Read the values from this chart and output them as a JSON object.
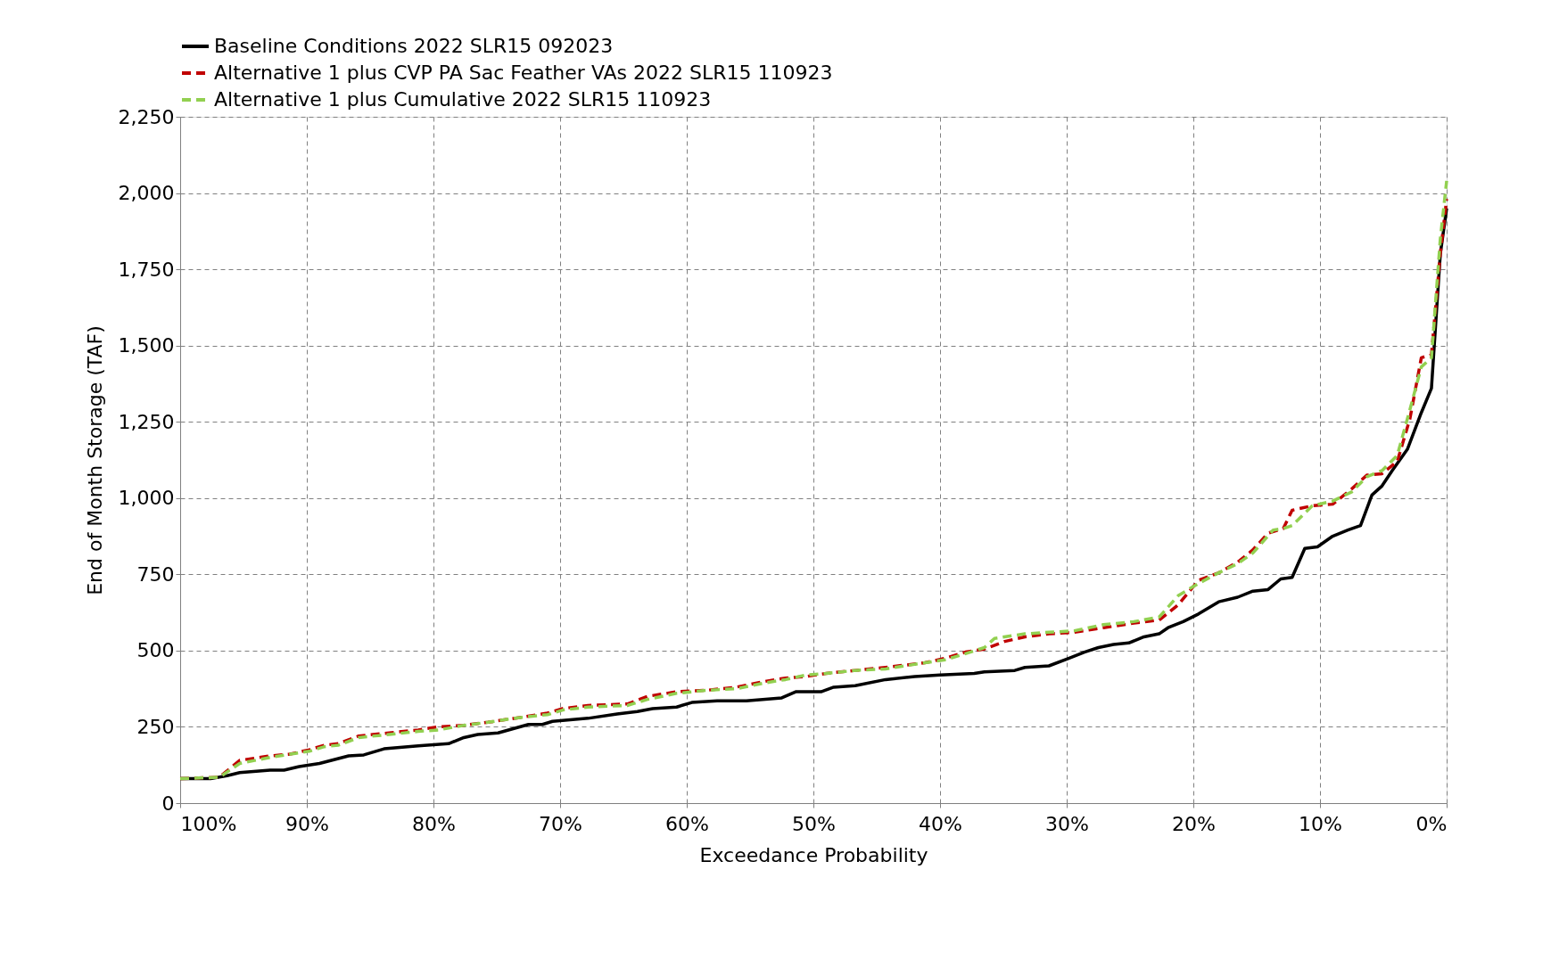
{
  "chart_data": {
    "type": "line",
    "xlabel": "Exceedance Probability",
    "ylabel": "End of Month Storage (TAF)",
    "xlim": [
      100,
      0
    ],
    "xticks": [
      {
        "value": 100,
        "label": "100%"
      },
      {
        "value": 90,
        "label": "90%"
      },
      {
        "value": 80,
        "label": "80%"
      },
      {
        "value": 70,
        "label": "70%"
      },
      {
        "value": 60,
        "label": "60%"
      },
      {
        "value": 50,
        "label": "50%"
      },
      {
        "value": 40,
        "label": "40%"
      },
      {
        "value": 30,
        "label": "30%"
      },
      {
        "value": 20,
        "label": "20%"
      },
      {
        "value": 10,
        "label": "10%"
      },
      {
        "value": 0,
        "label": "0%"
      }
    ],
    "ylim": [
      0,
      2250
    ],
    "yticks": [
      0,
      {
        "value": 250,
        "label": "250"
      },
      {
        "value": 500,
        "label": "500"
      },
      {
        "value": 750,
        "label": "750"
      },
      {
        "value": 1000,
        "label": "1,000"
      },
      {
        "value": 1250,
        "label": "1,250"
      },
      {
        "value": 1500,
        "label": "1,500"
      },
      {
        "value": 1750,
        "label": "1,750"
      },
      {
        "value": 2000,
        "label": "2,000"
      },
      {
        "value": 2250,
        "label": "2,250"
      }
    ],
    "grid": true,
    "legend": "top",
    "marker": "none",
    "series": [
      {
        "name": "Baseline Conditions 2022 SLR15 092023",
        "color": "#000000",
        "line_style": "solid",
        "x": [
          100,
          97.6,
          96.3,
          95.3,
          92.9,
          91.8,
          90.6,
          89.0,
          86.7,
          85.5,
          83.9,
          81.2,
          78.8,
          77.6,
          76.5,
          74.9,
          72.5,
          71.4,
          70.6,
          67.8,
          65.5,
          63.9,
          62.7,
          60.8,
          59.6,
          57.6,
          55.3,
          52.5,
          51.4,
          49.4,
          48.4,
          46.7,
          44.3,
          42.0,
          40.0,
          37.3,
          36.5,
          34.1,
          33.3,
          31.4,
          29.8,
          28.6,
          27.5,
          26.3,
          25.1,
          23.9,
          22.7,
          22.0,
          20.8,
          19.6,
          18.0,
          16.5,
          15.3,
          14.1,
          13.1,
          12.2,
          11.2,
          10.2,
          9.0,
          7.8,
          6.8,
          5.9,
          5.1,
          4.3,
          3.1,
          2.0,
          1.2,
          0.5,
          0
        ],
        "values": [
          80,
          80,
          90,
          100,
          108,
          108,
          120,
          130,
          155,
          158,
          178,
          188,
          195,
          215,
          225,
          230,
          258,
          258,
          268,
          278,
          292,
          300,
          310,
          315,
          330,
          335,
          335,
          345,
          365,
          365,
          380,
          385,
          405,
          415,
          420,
          425,
          430,
          435,
          445,
          450,
          475,
          495,
          510,
          520,
          525,
          545,
          555,
          575,
          595,
          620,
          660,
          675,
          695,
          700,
          735,
          740,
          835,
          840,
          875,
          895,
          910,
          1010,
          1040,
          1090,
          1160,
          1280,
          1360,
          1800,
          1950
        ]
      },
      {
        "name": "Alternative 1 plus CVP PA Sac Feather VAs 2022 SLR15 110923",
        "color": "#c00000",
        "line_style": "dashed",
        "x": [
          100,
          96.9,
          95.3,
          92.9,
          91.4,
          89.8,
          88.6,
          87.5,
          85.9,
          83.5,
          81.2,
          79.6,
          77.6,
          75.7,
          73.3,
          71.0,
          69.8,
          67.8,
          64.7,
          63.1,
          60.8,
          58.4,
          56.1,
          53.7,
          52.2,
          50.6,
          49.0,
          46.7,
          44.3,
          41.2,
          39.6,
          38.0,
          36.5,
          34.9,
          33.3,
          31.4,
          29.4,
          27.1,
          24.7,
          22.7,
          21.2,
          19.6,
          18.0,
          16.5,
          15.3,
          14.1,
          12.9,
          12.2,
          10.6,
          9.0,
          7.5,
          6.3,
          5.1,
          3.9,
          2.9,
          2.0,
          1.2,
          0.5,
          0
        ],
        "values": [
          80,
          85,
          140,
          155,
          160,
          175,
          190,
          195,
          220,
          230,
          240,
          250,
          255,
          265,
          280,
          295,
          310,
          320,
          325,
          350,
          365,
          370,
          380,
          400,
          410,
          415,
          425,
          435,
          445,
          460,
          475,
          495,
          505,
          530,
          545,
          555,
          560,
          575,
          590,
          600,
          650,
          730,
          755,
          790,
          830,
          885,
          900,
          960,
          975,
          980,
          1030,
          1075,
          1080,
          1120,
          1260,
          1460,
          1470,
          1800,
          1980
        ]
      },
      {
        "name": "Alternative 1 plus Cumulative 2022 SLR15 110923",
        "color": "#92d050",
        "line_style": "dashed",
        "x": [
          100,
          96.9,
          95.3,
          92.9,
          91.4,
          89.8,
          88.6,
          87.5,
          85.9,
          83.5,
          81.2,
          79.6,
          77.6,
          75.7,
          73.3,
          71.0,
          69.8,
          67.8,
          64.7,
          63.1,
          60.8,
          58.4,
          56.1,
          53.7,
          52.2,
          50.6,
          49.0,
          46.7,
          44.3,
          41.2,
          39.6,
          38.0,
          36.5,
          35.7,
          33.3,
          31.4,
          29.4,
          27.1,
          24.7,
          22.7,
          21.2,
          19.6,
          18.0,
          16.5,
          15.3,
          13.7,
          12.9,
          12.2,
          10.6,
          9.0,
          7.5,
          6.3,
          5.1,
          3.9,
          2.9,
          2.0,
          1.2,
          0.5,
          0
        ],
        "values": [
          80,
          85,
          130,
          150,
          160,
          170,
          185,
          190,
          215,
          225,
          235,
          240,
          255,
          265,
          280,
          290,
          305,
          315,
          320,
          340,
          360,
          370,
          375,
          395,
          405,
          420,
          425,
          435,
          440,
          460,
          470,
          490,
          510,
          540,
          555,
          560,
          565,
          585,
          595,
          610,
          680,
          720,
          755,
          785,
          820,
          895,
          900,
          910,
          975,
          990,
          1020,
          1070,
          1090,
          1140,
          1290,
          1430,
          1460,
          1850,
          2040
        ]
      }
    ]
  }
}
